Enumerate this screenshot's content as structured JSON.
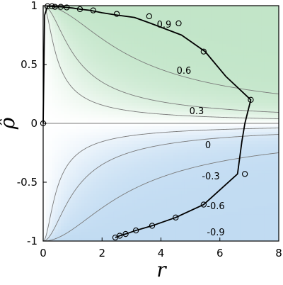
{
  "chart_data": {
    "type": "line",
    "title": "",
    "xlabel": "r",
    "ylabel": "ρ̂",
    "xlim": [
      0,
      8
    ],
    "ylim": [
      -1,
      1
    ],
    "x_ticks": [
      "0",
      "2",
      "4",
      "6",
      "8"
    ],
    "y_ticks": [
      "1",
      "0.5",
      "0",
      "-0.5",
      "-1"
    ],
    "x_tick_values": [
      0,
      2,
      4,
      6,
      8
    ],
    "y_tick_values": [
      1,
      0.5,
      0,
      -0.5,
      -1
    ],
    "grid": false,
    "legend": "none",
    "contour_levels": [
      -0.9,
      -0.6,
      -0.3,
      0,
      0.3,
      0.6,
      0.9
    ],
    "contour_labels": [
      {
        "text": "0.9",
        "level": 0.9
      },
      {
        "text": "0.6",
        "level": 0.6
      },
      {
        "text": "0.3",
        "level": 0.3
      },
      {
        "text": "0",
        "level": 0
      },
      {
        "text": "-0.3",
        "level": -0.3
      },
      {
        "text": "-0.6",
        "level": -0.6
      },
      {
        "text": "-0.9",
        "level": -0.9
      }
    ],
    "colors": {
      "positive": "#3fae54",
      "negative": "#3d8fd6",
      "line": "#000000",
      "contour": "#7a7a7a"
    },
    "series": [
      {
        "x": [
          0.0,
          0.05,
          0.15,
          0.3,
          0.4,
          0.6,
          0.8,
          1.0,
          1.25,
          1.6,
          2.0,
          2.5,
          3.1,
          3.65,
          4.7,
          5.5,
          6.2,
          7.05,
          6.95,
          6.85,
          6.75,
          6.6,
          5.45,
          4.5,
          3.7,
          3.15,
          2.8,
          2.6,
          2.45
        ],
        "y": [
          0.0,
          0.92,
          0.995,
          0.995,
          0.99,
          0.99,
          0.985,
          0.98,
          0.97,
          0.96,
          0.94,
          0.92,
          0.9,
          0.85,
          0.75,
          0.61,
          0.4,
          0.2,
          0.1,
          -0.0,
          -0.15,
          -0.43,
          -0.69,
          -0.8,
          -0.87,
          -0.91,
          -0.94,
          -0.955,
          -0.97
        ]
      }
    ],
    "markers": [
      {
        "x": 0.0,
        "y": 0.0
      },
      {
        "x": 0.15,
        "y": 0.995
      },
      {
        "x": 0.3,
        "y": 0.995
      },
      {
        "x": 0.4,
        "y": 0.99
      },
      {
        "x": 0.6,
        "y": 0.99
      },
      {
        "x": 0.8,
        "y": 0.985
      },
      {
        "x": 1.25,
        "y": 0.97
      },
      {
        "x": 1.7,
        "y": 0.96
      },
      {
        "x": 2.5,
        "y": 0.93
      },
      {
        "x": 3.6,
        "y": 0.91
      },
      {
        "x": 4.6,
        "y": 0.85
      },
      {
        "x": 5.45,
        "y": 0.61
      },
      {
        "x": 7.05,
        "y": 0.2
      },
      {
        "x": 6.85,
        "y": -0.43
      },
      {
        "x": 5.45,
        "y": -0.69
      },
      {
        "x": 4.5,
        "y": -0.8
      },
      {
        "x": 3.7,
        "y": -0.87
      },
      {
        "x": 3.15,
        "y": -0.91
      },
      {
        "x": 2.8,
        "y": -0.94
      },
      {
        "x": 2.6,
        "y": -0.955
      },
      {
        "x": 2.45,
        "y": -0.97
      }
    ]
  }
}
